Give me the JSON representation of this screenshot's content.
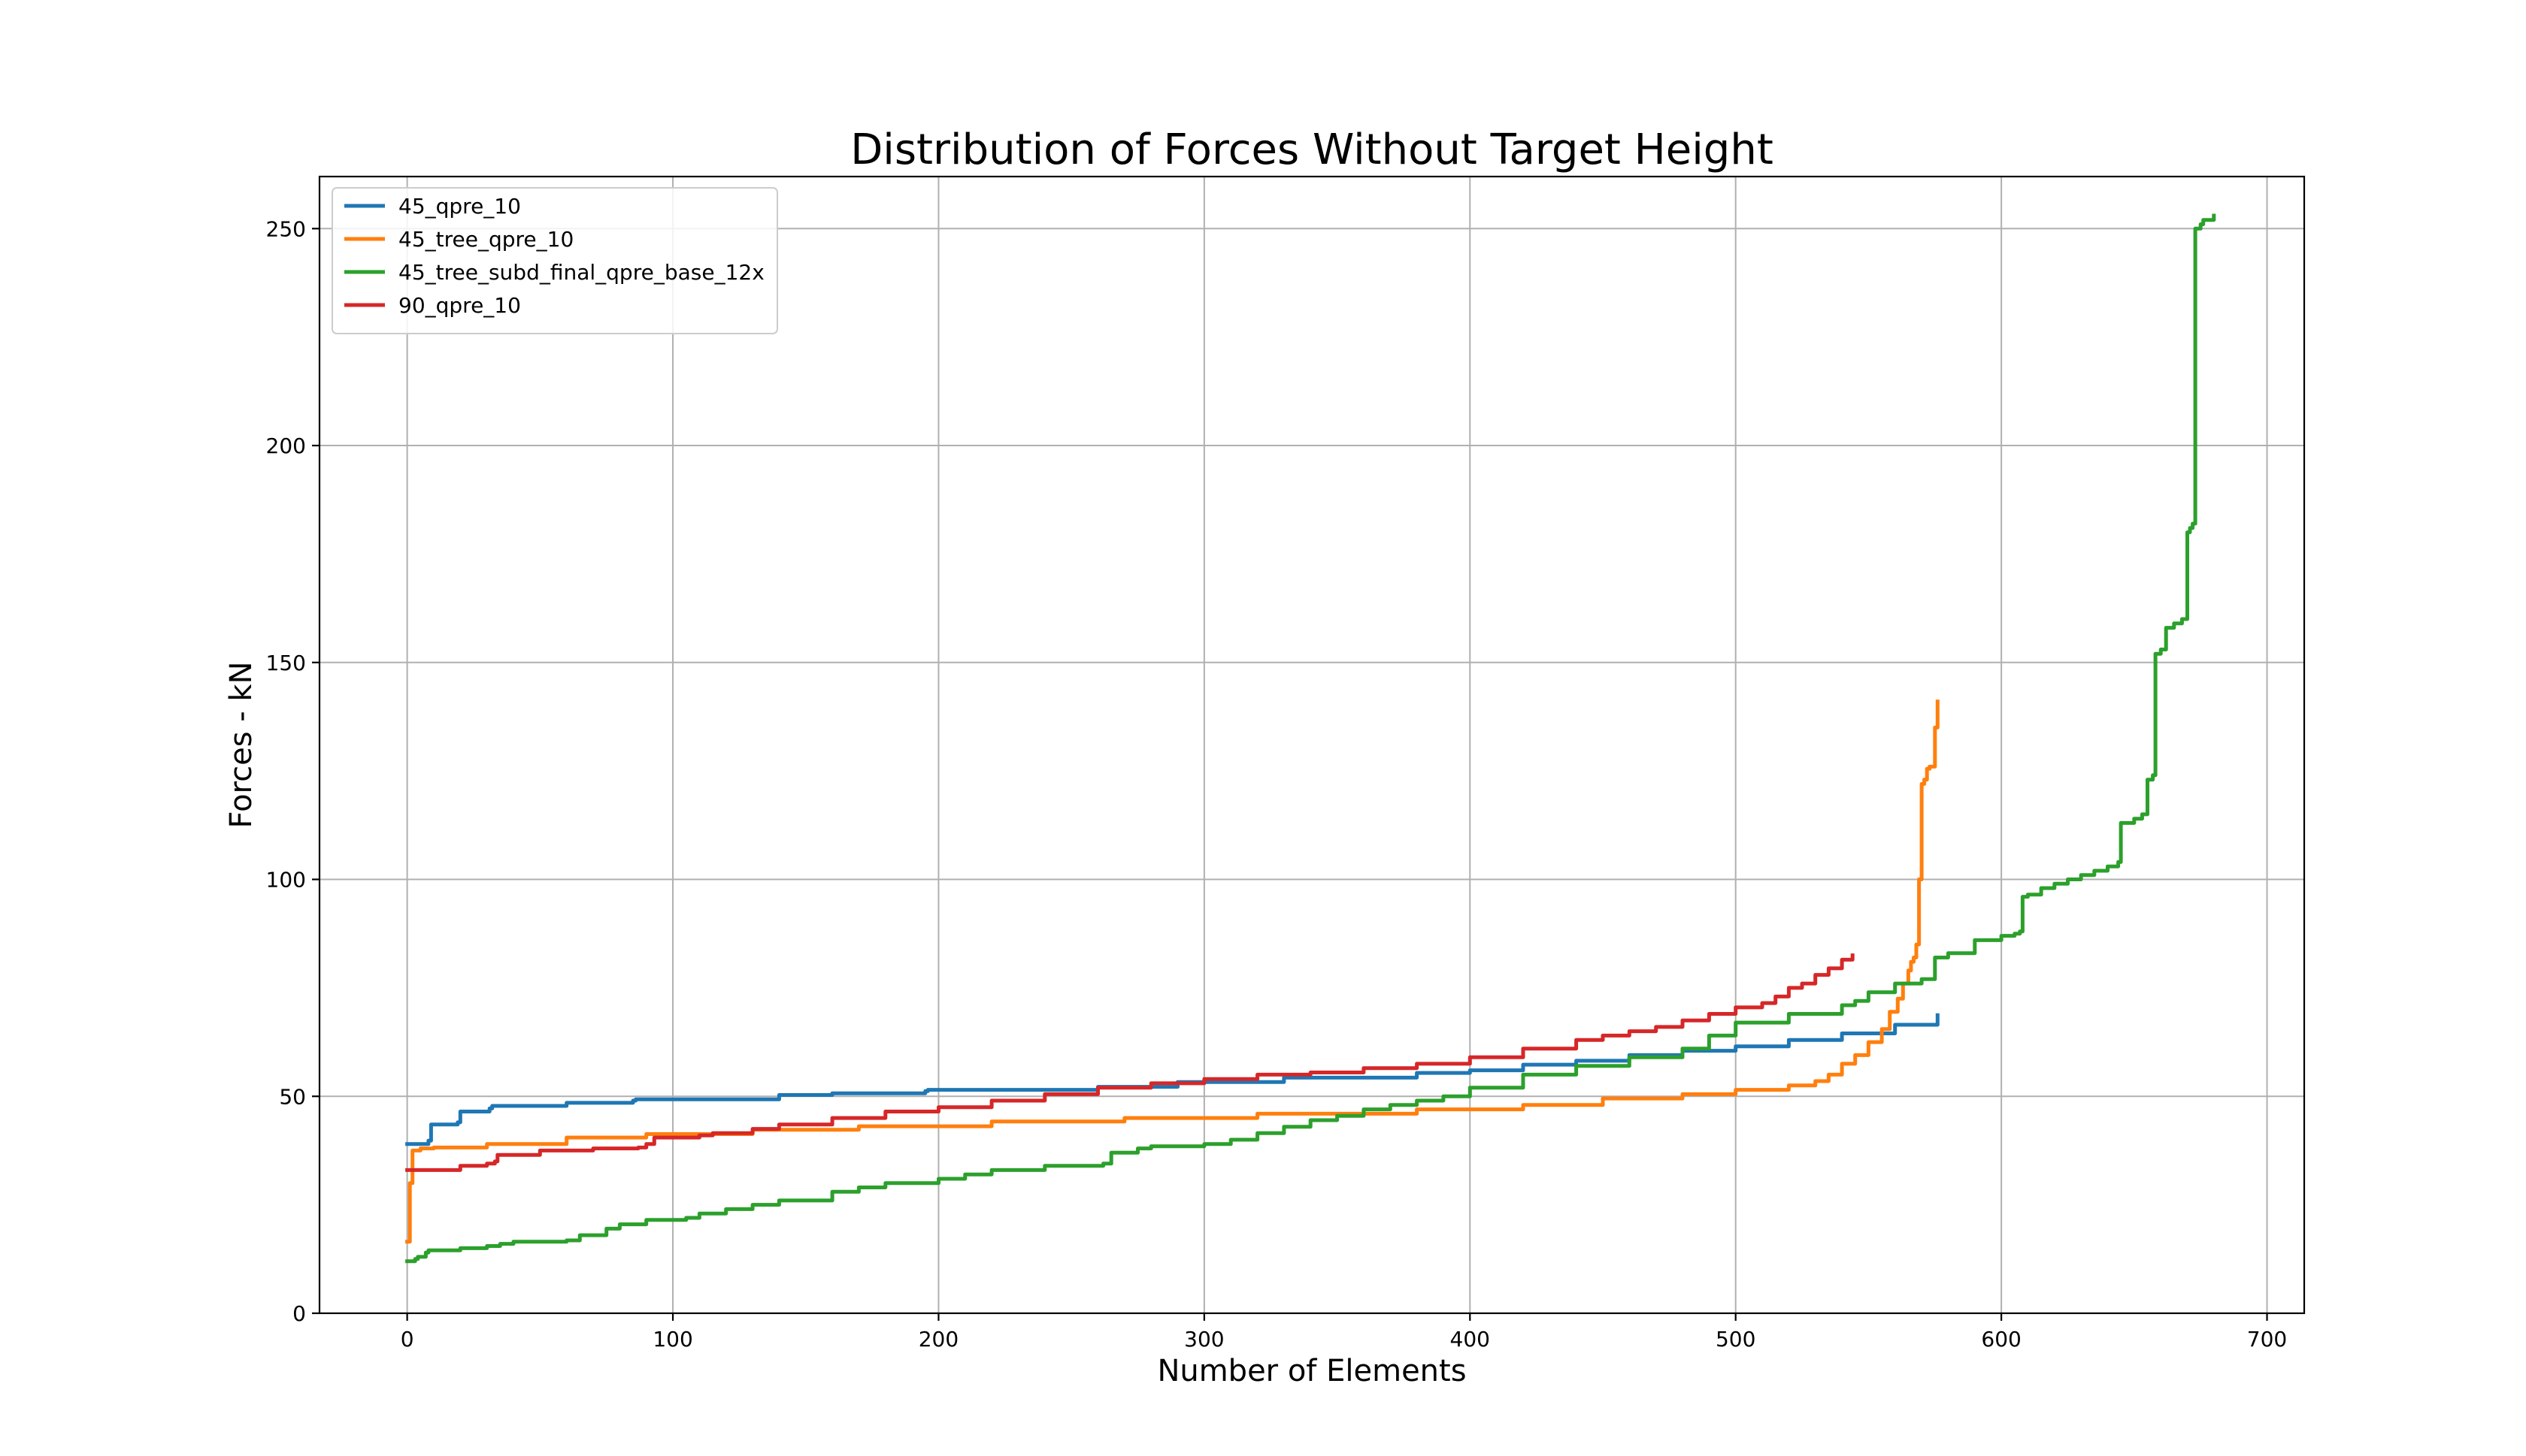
{
  "chart_data": {
    "type": "line",
    "title": "Distribution of Forces Without Target Height",
    "xlabel": "Number of Elements",
    "ylabel": "Forces - kN",
    "xlim": [
      -33,
      714
    ],
    "ylim": [
      0,
      262
    ],
    "xticks": [
      0,
      100,
      200,
      300,
      400,
      500,
      600,
      700
    ],
    "yticks": [
      0,
      50,
      100,
      150,
      200,
      250
    ],
    "grid": true,
    "legend_position": "top-left",
    "series": [
      {
        "name": "45_qpre_10",
        "color": "#1f77b4",
        "x": [
          0,
          8,
          9,
          19,
          20,
          31,
          32,
          60,
          85,
          86,
          140,
          160,
          195,
          196,
          260,
          290,
          330,
          380,
          400,
          420,
          440,
          460,
          480,
          500,
          520,
          540,
          560,
          576
        ],
        "y": [
          39,
          39.8,
          43.5,
          44,
          46.5,
          47.2,
          47.8,
          48.5,
          49,
          49.3,
          50.3,
          50.7,
          51.2,
          51.5,
          52.2,
          53.3,
          54.3,
          55.4,
          56,
          57.3,
          58.2,
          59.5,
          60.5,
          61.5,
          63,
          64.5,
          66.5,
          68.7
        ]
      },
      {
        "name": "45_tree_qpre_10",
        "color": "#ff7f0e",
        "x": [
          0,
          1,
          2,
          5,
          10,
          30,
          60,
          90,
          130,
          170,
          220,
          270,
          320,
          380,
          420,
          450,
          480,
          500,
          520,
          530,
          535,
          540,
          545,
          550,
          555,
          558,
          561,
          563,
          565,
          566,
          567,
          568,
          569,
          570,
          571,
          572,
          573,
          575,
          576
        ],
        "y": [
          16.5,
          30,
          37.5,
          38,
          38.2,
          39,
          40.5,
          41.3,
          42.3,
          43.1,
          44.2,
          45,
          46,
          47,
          48,
          49.5,
          50.5,
          51.5,
          52.5,
          53.5,
          55,
          57.5,
          59.5,
          62.5,
          65.5,
          69.5,
          72.5,
          76,
          79,
          81,
          82,
          85,
          100,
          122,
          123,
          125.5,
          126,
          135,
          141
        ]
      },
      {
        "name": "45_tree_subd_final_qpre_base_12x",
        "color": "#2ca02c",
        "x": [
          0,
          3,
          4,
          7,
          8,
          20,
          30,
          35,
          40,
          60,
          65,
          75,
          80,
          90,
          105,
          110,
          120,
          130,
          140,
          160,
          170,
          180,
          200,
          210,
          220,
          240,
          262,
          265,
          275,
          280,
          300,
          310,
          320,
          330,
          340,
          350,
          360,
          370,
          380,
          390,
          400,
          420,
          440,
          460,
          480,
          490,
          500,
          520,
          540,
          545,
          550,
          560,
          570,
          575,
          580,
          590,
          600,
          605,
          607,
          608,
          610,
          615,
          620,
          625,
          630,
          635,
          640,
          644,
          645,
          650,
          653,
          655,
          657,
          658,
          660,
          662,
          665,
          668,
          670,
          671,
          672,
          673,
          675,
          676,
          680
        ],
        "y": [
          12,
          12.5,
          13,
          14,
          14.5,
          15,
          15.5,
          16,
          16.5,
          16.8,
          18,
          19.5,
          20.5,
          21.5,
          22,
          23,
          24,
          25,
          26,
          28,
          29,
          30,
          31,
          32,
          33,
          34,
          34.5,
          37,
          38,
          38.5,
          39,
          40,
          41.5,
          43,
          44.5,
          45.5,
          47,
          48,
          49,
          50,
          52,
          55,
          57,
          59,
          61,
          64,
          67,
          69,
          71,
          72,
          74,
          76,
          77,
          82,
          83,
          86,
          87,
          87.5,
          88,
          96,
          96.5,
          98,
          99,
          100,
          101,
          102,
          103,
          104,
          113,
          114,
          115,
          123,
          124,
          152,
          153,
          158,
          159,
          160,
          180,
          181,
          182,
          250,
          251,
          252,
          253
        ]
      },
      {
        "name": "90_qpre_10",
        "color": "#d62728",
        "x": [
          0,
          20,
          30,
          33,
          34,
          50,
          70,
          87,
          90,
          93,
          110,
          115,
          130,
          140,
          160,
          180,
          200,
          220,
          240,
          260,
          280,
          300,
          320,
          340,
          360,
          380,
          400,
          420,
          440,
          450,
          460,
          470,
          480,
          490,
          500,
          510,
          515,
          520,
          525,
          530,
          535,
          540,
          544
        ],
        "y": [
          33,
          34,
          34.5,
          35,
          36.5,
          37.5,
          38,
          38.2,
          39,
          40.5,
          41,
          41.5,
          42.5,
          43.5,
          45,
          46.5,
          47.5,
          49,
          50.5,
          52,
          53,
          54,
          55,
          55.5,
          56.5,
          57.5,
          59,
          61,
          63,
          64,
          65,
          66,
          67.5,
          69,
          70.5,
          71.5,
          73,
          75,
          76,
          78,
          79.5,
          81.5,
          82.5
        ]
      }
    ]
  }
}
